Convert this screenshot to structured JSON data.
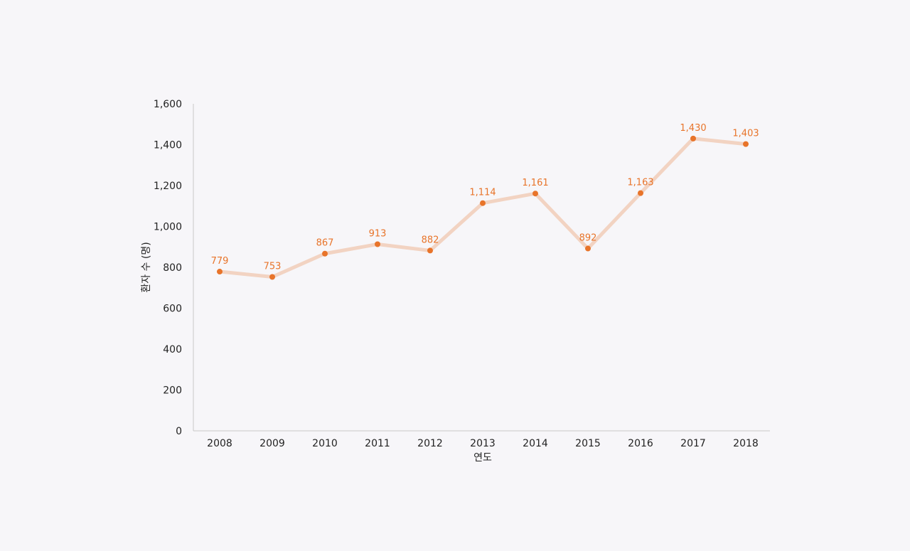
{
  "chart_data": {
    "type": "line",
    "title": "",
    "xlabel": "연도",
    "ylabel": "환자 수 (명)",
    "categories": [
      "2008",
      "2009",
      "2010",
      "2011",
      "2012",
      "2013",
      "2014",
      "2015",
      "2016",
      "2017",
      "2018"
    ],
    "series": [
      {
        "values": [
          779,
          753,
          867,
          913,
          882,
          1114,
          1161,
          892,
          1163,
          1430,
          1403
        ]
      }
    ],
    "data_labels": [
      "779",
      "753",
      "867",
      "913",
      "882",
      "1,114",
      "1,161",
      "892",
      "1,163",
      "1,430",
      "1,403"
    ],
    "ylim": [
      0,
      1600
    ],
    "y_ticks": [
      0,
      200,
      400,
      600,
      800,
      1000,
      1200,
      1400,
      1600
    ],
    "y_tick_labels": [
      "0",
      "200",
      "400",
      "600",
      "800",
      "1,000",
      "1,200",
      "1,400",
      "1,600"
    ],
    "grid": false,
    "legend": "none",
    "colors": {
      "line": "#f2d3c2",
      "marker": "#e8742a",
      "data_label": "#e8742a",
      "axis": "#c8c8c8",
      "text": "#222222",
      "background": "#f7f6f9"
    }
  }
}
